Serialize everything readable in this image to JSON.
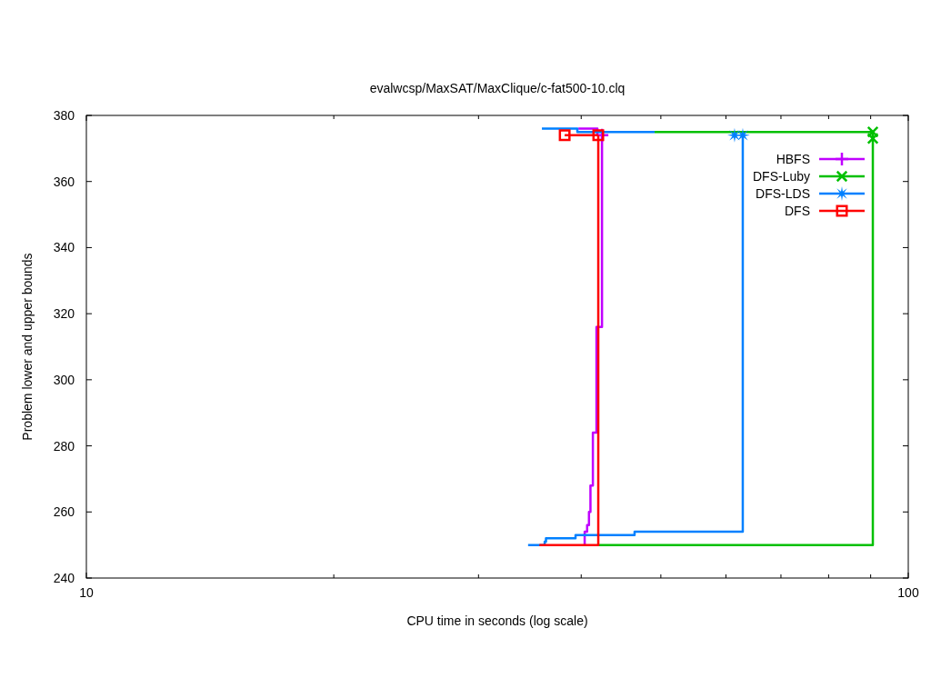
{
  "chart_data": {
    "type": "step",
    "title": "evalwcsp/MaxSAT/MaxClique/c-fat500-10.clq",
    "xlabel": "CPU time in seconds (log scale)",
    "ylabel": "Problem lower and upper bounds",
    "log": "x",
    "xlim": [
      10,
      100
    ],
    "xticks": [
      10,
      {
        "value": 20,
        "label": null
      },
      {
        "value": 30,
        "label": null
      },
      {
        "value": 40,
        "label": null
      },
      {
        "value": 50,
        "label": null
      },
      {
        "value": 60,
        "label": null
      },
      {
        "value": 70,
        "label": null
      },
      {
        "value": 80,
        "label": null
      },
      {
        "value": 90,
        "label": null
      },
      100
    ],
    "ylim": [
      240,
      380
    ],
    "yticks": [
      240,
      260,
      280,
      300,
      320,
      340,
      360,
      380
    ],
    "legend": "top right",
    "series": [
      {
        "name": "HBFS",
        "color": "#c000ff",
        "x": [
          39.68,
          41.86
        ],
        "values": [
          376,
          374
        ]
      },
      {
        "color": "#c000ff",
        "x": [
          40.39,
          40.39,
          40.67,
          40.88,
          41.05,
          41.33,
          41.75,
          42.4
        ],
        "values": [
          250,
          254,
          256,
          260,
          268,
          284,
          316,
          374
        ]
      },
      {
        "color": "#c000ff",
        "type": "scatter",
        "marker": "cross",
        "x": [
          42.4
        ],
        "values": [
          374
        ]
      },
      {
        "name": "DFS-Luby",
        "color": "#00c000",
        "x": [
          49.13,
          90.55
        ],
        "values": [
          375,
          375
        ]
      },
      {
        "color": "#00c000",
        "x": [
          41.96,
          90.55
        ],
        "values": [
          250,
          375
        ]
      },
      {
        "color": "#00c000",
        "type": "scatter",
        "marker": "x",
        "x": [
          90.55,
          90.55
        ],
        "values": [
          375,
          373
        ]
      },
      {
        "name": "DFS-LDS",
        "color": "#0080ff",
        "x": [
          35.83,
          39.57,
          49.13
        ],
        "values": [
          376,
          375,
          375
        ]
      },
      {
        "color": "#0080ff",
        "x": [
          34.47,
          36.11,
          36.24,
          39.37,
          46.45,
          62.9
        ],
        "values": [
          250,
          251,
          252,
          253,
          254,
          374
        ]
      },
      {
        "color": "#0080ff",
        "type": "scatter",
        "marker": "star",
        "x": [
          61.47,
          62.9
        ],
        "values": [
          374,
          374
        ]
      },
      {
        "name": "DFS",
        "color": "#ff0000",
        "x": [
          38.19,
          41.96
        ],
        "values": [
          374,
          374
        ]
      },
      {
        "color": "#ff0000",
        "x": [
          35.58,
          41.96
        ],
        "values": [
          250,
          374
        ]
      },
      {
        "color": "#ff0000",
        "type": "scatter",
        "marker": "square",
        "x": [
          38.19,
          41.96
        ],
        "values": [
          374,
          374
        ]
      }
    ]
  }
}
